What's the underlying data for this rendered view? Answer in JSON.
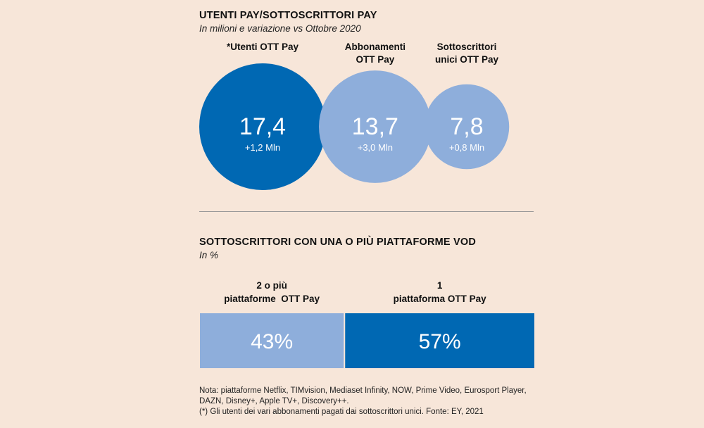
{
  "section1": {
    "title": "UTENTI PAY/SOTTOSCRITTORI PAY",
    "subtitle": "In milioni e variazione vs Ottobre 2020"
  },
  "section2": {
    "title": "SOTTOSCRITTORI CON UNA O PIÙ PIATTAFORME VOD",
    "subtitle": "In %"
  },
  "notes": {
    "line1": "Nota: piattaforme Netflix, TIMvision, Mediaset Infinity, NOW, Prime Video, Eurosport Player,",
    "line2": "DAZN,  Disney+, Apple TV+, Discovery++.",
    "line3": "(*) Gli utenti dei vari abbonamenti pagati dai sottoscrittori unici. Fonte: EY, 2021"
  },
  "colors": {
    "dark_blue": "#0068b3",
    "light_blue": "#8eaedb",
    "background": "#f7e6d9"
  },
  "chart_data": [
    {
      "type": "bubble",
      "title": "UTENTI PAY/SOTTOSCRITTORI PAY",
      "subtitle": "In milioni e variazione vs Ottobre 2020",
      "categories": [
        "*Utenti OTT Pay",
        "Abbonamenti OTT Pay",
        "Sottoscrittori unici OTT Pay"
      ],
      "label_lines": [
        [
          "*Utenti OTT Pay"
        ],
        [
          "Abbonamenti",
          "OTT Pay"
        ],
        [
          "Sottoscrittori",
          "unici OTT Pay"
        ]
      ],
      "values": [
        17.4,
        13.7,
        7.8
      ],
      "value_labels": [
        "17,4",
        "13,7",
        "7,8"
      ],
      "changes": [
        "+1,2 Mln",
        "+3,0 Mln",
        "+0,8 Mln"
      ],
      "colors": [
        "#0068b3",
        "#8eaedb",
        "#8eaedb"
      ]
    },
    {
      "type": "bar",
      "orientation": "horizontal-stacked",
      "title": "SOTTOSCRITTORI CON UNA O PIÙ PIATTAFORME VOD",
      "subtitle": "In %",
      "categories": [
        "2 o più piattaforme OTT Pay",
        "1 piattaforma OTT Pay"
      ],
      "label_lines": [
        [
          "2 o più",
          "piattaforme  OTT Pay"
        ],
        [
          "1",
          "piattaforma OTT Pay"
        ]
      ],
      "values": [
        43,
        57
      ],
      "value_labels": [
        "43%",
        "57%"
      ],
      "colors": [
        "#8eaedb",
        "#0068b3"
      ]
    }
  ]
}
